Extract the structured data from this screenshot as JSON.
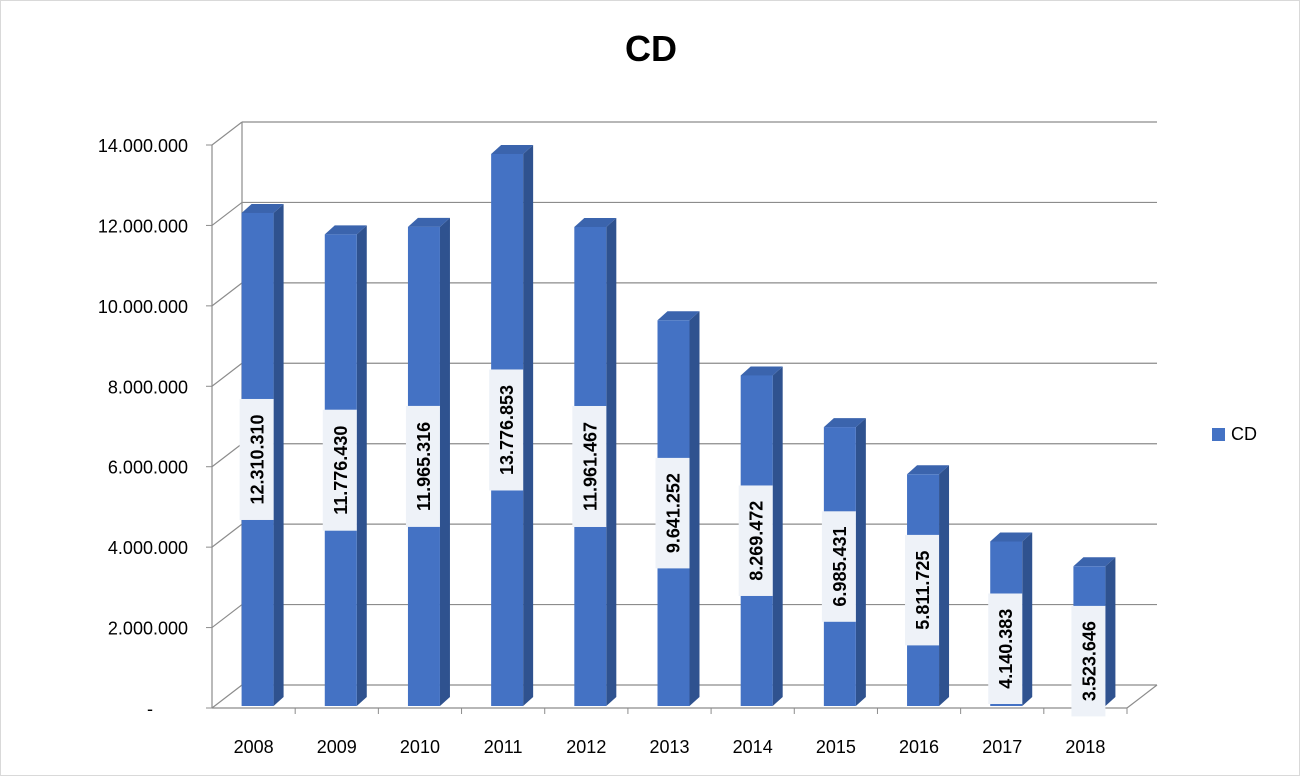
{
  "chart_data": {
    "type": "bar",
    "title": "CD",
    "categories": [
      "2008",
      "2009",
      "2010",
      "2011",
      "2012",
      "2013",
      "2014",
      "2015",
      "2016",
      "2017",
      "2018"
    ],
    "series": [
      {
        "name": "CD",
        "values": [
          12310310,
          11776430,
          11965316,
          13776853,
          11961467,
          9641252,
          8269472,
          6985431,
          5811725,
          4140383,
          3523646
        ],
        "labels": [
          "12.310.310",
          "11.776.430",
          "11.965.316",
          "13.776.853",
          "11.961.467",
          "9.641.252",
          "8.269.472",
          "6.985.431",
          "5.811.725",
          "4.140.383",
          "3.523.646"
        ],
        "color": "#4472c4"
      }
    ],
    "ylim": [
      0,
      14000000
    ],
    "yticks": [
      0,
      2000000,
      4000000,
      6000000,
      8000000,
      10000000,
      12000000,
      14000000
    ],
    "ytick_labels": [
      "-",
      "2.000.000",
      "4.000.000",
      "6.000.000",
      "8.000.000",
      "10.000.000",
      "12.000.000",
      "14.000.000"
    ],
    "grid": true,
    "legend_position": "right",
    "style": "3d-column"
  }
}
